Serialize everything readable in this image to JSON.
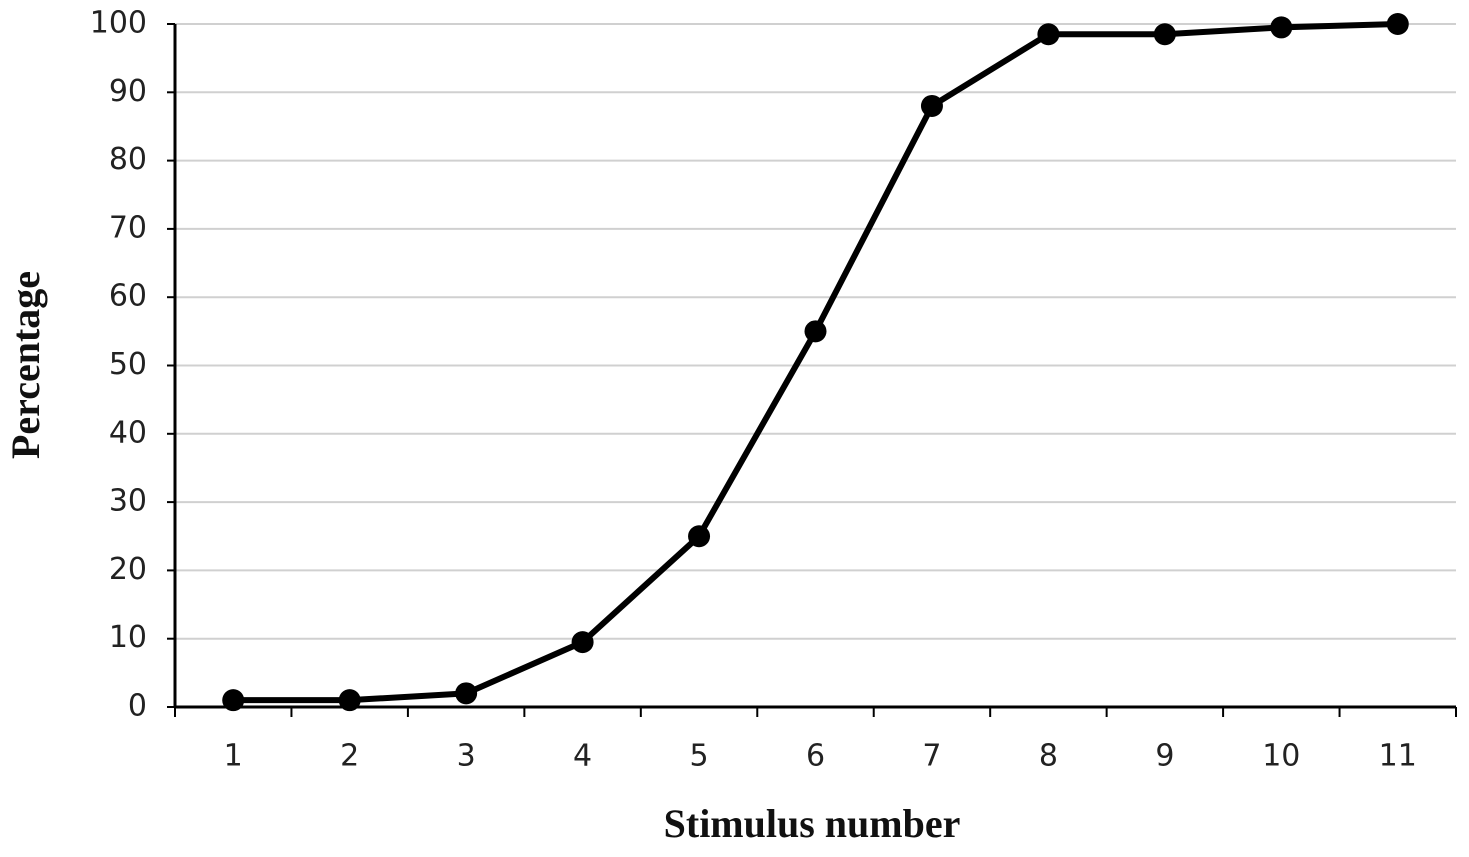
{
  "chart_data": {
    "type": "line",
    "x_label": "Stimulus number",
    "y_label": "Percentage",
    "categories": [
      "1",
      "2",
      "3",
      "4",
      "5",
      "6",
      "7",
      "8",
      "9",
      "10",
      "11"
    ],
    "values": [
      1,
      1,
      2,
      9.5,
      25,
      55,
      88,
      98.5,
      98.5,
      99.5,
      100
    ],
    "color": "#000000",
    "ylim": [
      0,
      100
    ],
    "yticks": [
      0,
      10,
      20,
      30,
      40,
      50,
      60,
      70,
      80,
      90,
      100
    ],
    "grid": true
  }
}
